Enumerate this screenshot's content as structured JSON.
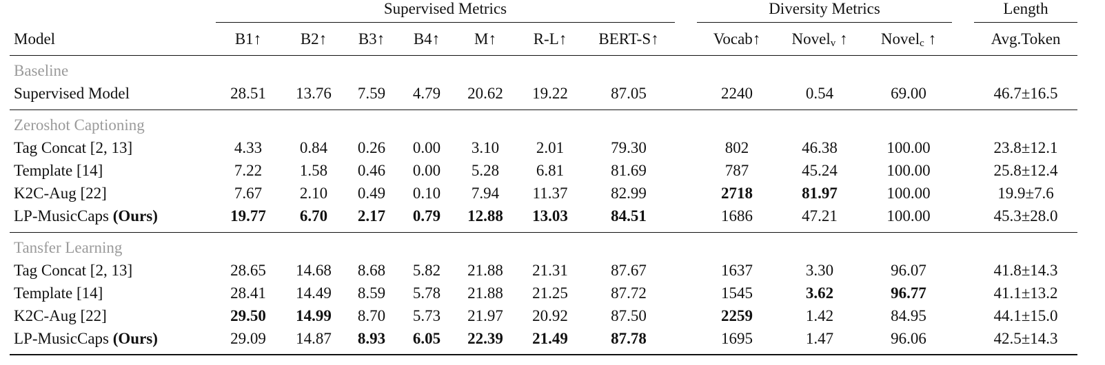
{
  "groups": {
    "supervised": "Supervised Metrics",
    "diversity": "Diversity Metrics",
    "length": "Length"
  },
  "columns": {
    "model": "Model",
    "b1": "B1↑",
    "b2": "B2↑",
    "b3": "B3↑",
    "b4": "B4↑",
    "m": "M↑",
    "rl": "R-L↑",
    "berts": "BERT-S↑",
    "vocab": "Vocab↑",
    "novel_v_base": "Novel",
    "novel_v_sub": "v",
    "novel_v_arrow": " ↑",
    "novel_c_base": "Novel",
    "novel_c_sub": "c",
    "novel_c_arrow": " ↑",
    "avg_token": "Avg.Token"
  },
  "sections": [
    {
      "title": "Baseline",
      "rows": [
        {
          "model": "Supervised Model",
          "model_suffix": "",
          "values": [
            "28.51",
            "13.76",
            "7.59",
            "4.79",
            "20.62",
            "19.22",
            "87.05",
            "2240",
            "0.54",
            "69.00",
            "46.7±16.5"
          ],
          "bold": [
            false,
            false,
            false,
            false,
            false,
            false,
            false,
            false,
            false,
            false,
            false
          ]
        }
      ]
    },
    {
      "title": "Zeroshot Captioning",
      "rows": [
        {
          "model": "Tag Concat [2, 13]",
          "model_suffix": "",
          "values": [
            "4.33",
            "0.84",
            "0.26",
            "0.00",
            "3.10",
            "2.01",
            "79.30",
            "802",
            "46.38",
            "100.00",
            "23.8±12.1"
          ],
          "bold": [
            false,
            false,
            false,
            false,
            false,
            false,
            false,
            false,
            false,
            false,
            false
          ]
        },
        {
          "model": "Template [14]",
          "model_suffix": "",
          "values": [
            "7.22",
            "1.58",
            "0.46",
            "0.00",
            "5.28",
            "6.81",
            "81.69",
            "787",
            "45.24",
            "100.00",
            "25.8±12.4"
          ],
          "bold": [
            false,
            false,
            false,
            false,
            false,
            false,
            false,
            false,
            false,
            false,
            false
          ]
        },
        {
          "model": "K2C-Aug [22]",
          "model_suffix": "",
          "values": [
            "7.67",
            "2.10",
            "0.49",
            "0.10",
            "7.94",
            "11.37",
            "82.99",
            "2718",
            "81.97",
            "100.00",
            "19.9±7.6"
          ],
          "bold": [
            false,
            false,
            false,
            false,
            false,
            false,
            false,
            true,
            true,
            false,
            false
          ]
        },
        {
          "model": "LP-MusicCaps ",
          "model_suffix": "(Ours)",
          "values": [
            "19.77",
            "6.70",
            "2.17",
            "0.79",
            "12.88",
            "13.03",
            "84.51",
            "1686",
            "47.21",
            "100.00",
            "45.3±28.0"
          ],
          "bold": [
            true,
            true,
            true,
            true,
            true,
            true,
            true,
            false,
            false,
            false,
            false
          ]
        }
      ]
    },
    {
      "title": "Tansfer Learning",
      "rows": [
        {
          "model": "Tag Concat [2, 13]",
          "model_suffix": "",
          "values": [
            "28.65",
            "14.68",
            "8.68",
            "5.82",
            "21.88",
            "21.31",
            "87.67",
            "1637",
            "3.30",
            "96.07",
            "41.8±14.3"
          ],
          "bold": [
            false,
            false,
            false,
            false,
            false,
            false,
            false,
            false,
            false,
            false,
            false
          ]
        },
        {
          "model": "Template [14]",
          "model_suffix": "",
          "values": [
            "28.41",
            "14.49",
            "8.59",
            "5.78",
            "21.88",
            "21.25",
            "87.72",
            "1545",
            "3.62",
            "96.77",
            "41.1±13.2"
          ],
          "bold": [
            false,
            false,
            false,
            false,
            false,
            false,
            false,
            false,
            true,
            true,
            false
          ]
        },
        {
          "model": "K2C-Aug [22]",
          "model_suffix": "",
          "values": [
            "29.50",
            "14.99",
            "8.70",
            "5.73",
            "21.97",
            "20.92",
            "87.50",
            "2259",
            "1.42",
            "84.95",
            "44.1±15.0"
          ],
          "bold": [
            true,
            true,
            false,
            false,
            false,
            false,
            false,
            true,
            false,
            false,
            false
          ]
        },
        {
          "model": "LP-MusicCaps ",
          "model_suffix": "(Ours)",
          "values": [
            "29.09",
            "14.87",
            "8.93",
            "6.05",
            "22.39",
            "21.49",
            "87.78",
            "1695",
            "1.47",
            "96.06",
            "42.5±14.3"
          ],
          "bold": [
            false,
            false,
            true,
            true,
            true,
            true,
            true,
            false,
            false,
            false,
            false
          ]
        }
      ]
    }
  ]
}
